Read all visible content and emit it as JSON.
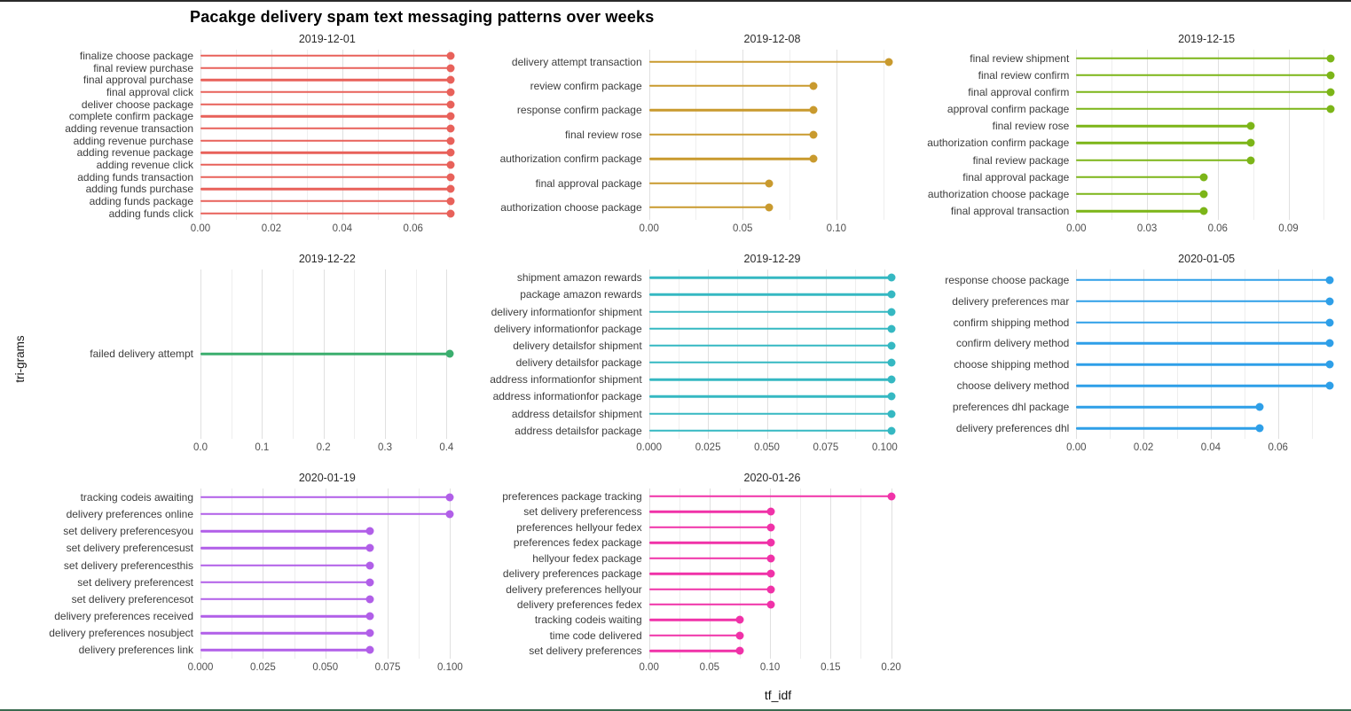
{
  "title": "Pacakge delivery spam text messaging patterns over weeks",
  "chart_data": {
    "type": "bar",
    "variant": "lollipop",
    "title": "Pacakge delivery spam text messaging patterns over weeks",
    "xlabel": "tf_idf",
    "ylabel": "tri-grams",
    "grid": "vertical-only",
    "legend": "none",
    "facets": [
      {
        "date": "2019-12-01",
        "color": "#E8615A",
        "xmax": 0.0715,
        "ticks": [
          {
            "v": 0.0,
            "label": "0.00"
          },
          {
            "v": 0.02,
            "label": "0.02"
          },
          {
            "v": 0.04,
            "label": "0.04"
          },
          {
            "v": 0.06,
            "label": "0.06"
          }
        ],
        "items": [
          {
            "label": "finalize choose package",
            "value": 0.0705
          },
          {
            "label": "final review purchase",
            "value": 0.0705
          },
          {
            "label": "final approval purchase",
            "value": 0.0705
          },
          {
            "label": "final approval click",
            "value": 0.0705
          },
          {
            "label": "deliver choose package",
            "value": 0.0705
          },
          {
            "label": "complete confirm package",
            "value": 0.0705
          },
          {
            "label": "adding revenue transaction",
            "value": 0.0705
          },
          {
            "label": "adding revenue purchase",
            "value": 0.0705
          },
          {
            "label": "adding revenue package",
            "value": 0.0705
          },
          {
            "label": "adding revenue click",
            "value": 0.0705
          },
          {
            "label": "adding funds transaction",
            "value": 0.0705
          },
          {
            "label": "adding funds purchase",
            "value": 0.0705
          },
          {
            "label": "adding funds package",
            "value": 0.0705
          },
          {
            "label": "adding funds click",
            "value": 0.0705
          }
        ]
      },
      {
        "date": "2019-12-08",
        "color": "#C99A2E",
        "xmax": 0.1315,
        "ticks": [
          {
            "v": 0.0,
            "label": "0.00"
          },
          {
            "v": 0.05,
            "label": "0.05"
          },
          {
            "v": 0.1,
            "label": "0.10"
          }
        ],
        "items": [
          {
            "label": "delivery attempt transaction",
            "value": 0.128
          },
          {
            "label": "review confirm package",
            "value": 0.088
          },
          {
            "label": "response confirm package",
            "value": 0.088
          },
          {
            "label": "final review rose",
            "value": 0.088
          },
          {
            "label": "authorization confirm package",
            "value": 0.088
          },
          {
            "label": "final approval package",
            "value": 0.064
          },
          {
            "label": "authorization choose package",
            "value": 0.064
          }
        ]
      },
      {
        "date": "2019-12-15",
        "color": "#7CB518",
        "xmax": 0.1105,
        "ticks": [
          {
            "v": 0.0,
            "label": "0.00"
          },
          {
            "v": 0.03,
            "label": "0.03"
          },
          {
            "v": 0.06,
            "label": "0.06"
          },
          {
            "v": 0.09,
            "label": "0.09"
          }
        ],
        "items": [
          {
            "label": "final review shipment",
            "value": 0.108
          },
          {
            "label": "final review confirm",
            "value": 0.108
          },
          {
            "label": "final approval confirm",
            "value": 0.108
          },
          {
            "label": "approval confirm package",
            "value": 0.108
          },
          {
            "label": "final review rose",
            "value": 0.074
          },
          {
            "label": "authorization confirm package",
            "value": 0.074
          },
          {
            "label": "final review package",
            "value": 0.074
          },
          {
            "label": "final approval package",
            "value": 0.054
          },
          {
            "label": "authorization choose package",
            "value": 0.054
          },
          {
            "label": "final approval transaction",
            "value": 0.054
          }
        ]
      },
      {
        "date": "2019-12-22",
        "color": "#3BAE6E",
        "xmax": 0.412,
        "ticks": [
          {
            "v": 0.0,
            "label": "0.0"
          },
          {
            "v": 0.1,
            "label": "0.1"
          },
          {
            "v": 0.2,
            "label": "0.2"
          },
          {
            "v": 0.3,
            "label": "0.3"
          },
          {
            "v": 0.4,
            "label": "0.4"
          }
        ],
        "items": [
          {
            "label": "failed delivery attempt",
            "value": 0.405
          }
        ]
      },
      {
        "date": "2019-12-29",
        "color": "#35B8C2",
        "xmax": 0.1045,
        "ticks": [
          {
            "v": 0.0,
            "label": "0.000"
          },
          {
            "v": 0.025,
            "label": "0.025"
          },
          {
            "v": 0.05,
            "label": "0.050"
          },
          {
            "v": 0.075,
            "label": "0.075"
          },
          {
            "v": 0.1,
            "label": "0.100"
          }
        ],
        "items": [
          {
            "label": "shipment amazon rewards",
            "value": 0.103
          },
          {
            "label": "package amazon rewards",
            "value": 0.103
          },
          {
            "label": "delivery informationfor shipment",
            "value": 0.103
          },
          {
            "label": "delivery informationfor package",
            "value": 0.103
          },
          {
            "label": "delivery detailsfor shipment",
            "value": 0.103
          },
          {
            "label": "delivery detailsfor package",
            "value": 0.103
          },
          {
            "label": "address informationfor shipment",
            "value": 0.103
          },
          {
            "label": "address informationfor package",
            "value": 0.103
          },
          {
            "label": "address detailsfor shipment",
            "value": 0.103
          },
          {
            "label": "address detailsfor package",
            "value": 0.103
          }
        ]
      },
      {
        "date": "2020-01-05",
        "color": "#2E9FE8",
        "xmax": 0.0775,
        "ticks": [
          {
            "v": 0.0,
            "label": "0.00"
          },
          {
            "v": 0.02,
            "label": "0.02"
          },
          {
            "v": 0.04,
            "label": "0.04"
          },
          {
            "v": 0.06,
            "label": "0.06"
          }
        ],
        "items": [
          {
            "label": "response choose package",
            "value": 0.0755
          },
          {
            "label": "delivery preferences mar",
            "value": 0.0755
          },
          {
            "label": "confirm shipping method",
            "value": 0.0755
          },
          {
            "label": "confirm delivery method",
            "value": 0.0755
          },
          {
            "label": "choose shipping method",
            "value": 0.0755
          },
          {
            "label": "choose delivery method",
            "value": 0.0755
          },
          {
            "label": "preferences dhl package",
            "value": 0.0545
          },
          {
            "label": "delivery preferences dhl",
            "value": 0.0545
          }
        ]
      },
      {
        "date": "2020-01-19",
        "color": "#B15FE8",
        "xmax": 0.1015,
        "ticks": [
          {
            "v": 0.0,
            "label": "0.000"
          },
          {
            "v": 0.025,
            "label": "0.025"
          },
          {
            "v": 0.05,
            "label": "0.050"
          },
          {
            "v": 0.075,
            "label": "0.075"
          },
          {
            "v": 0.1,
            "label": "0.100"
          }
        ],
        "items": [
          {
            "label": "tracking codeis awaiting",
            "value": 0.1
          },
          {
            "label": "delivery preferences online",
            "value": 0.1
          },
          {
            "label": "set delivery preferencesyou",
            "value": 0.068
          },
          {
            "label": "set delivery preferencesust",
            "value": 0.068
          },
          {
            "label": "set delivery preferencesthis",
            "value": 0.068
          },
          {
            "label": "set delivery preferencest",
            "value": 0.068
          },
          {
            "label": "set delivery preferencesot",
            "value": 0.068
          },
          {
            "label": "delivery preferences received",
            "value": 0.068
          },
          {
            "label": "delivery preferences nosubject",
            "value": 0.068
          },
          {
            "label": "delivery preferences link",
            "value": 0.068
          }
        ]
      },
      {
        "date": "2020-01-26",
        "color": "#F032A8",
        "xmax": 0.2035,
        "ticks": [
          {
            "v": 0.0,
            "label": "0.00"
          },
          {
            "v": 0.05,
            "label": "0.05"
          },
          {
            "v": 0.1,
            "label": "0.10"
          },
          {
            "v": 0.15,
            "label": "0.15"
          },
          {
            "v": 0.2,
            "label": "0.20"
          }
        ],
        "items": [
          {
            "label": "preferences package tracking",
            "value": 0.2
          },
          {
            "label": "set delivery preferencess",
            "value": 0.101
          },
          {
            "label": "preferences hellyour fedex",
            "value": 0.101
          },
          {
            "label": "preferences fedex package",
            "value": 0.101
          },
          {
            "label": "hellyour fedex package",
            "value": 0.101
          },
          {
            "label": "delivery preferences package",
            "value": 0.101
          },
          {
            "label": "delivery preferences hellyour",
            "value": 0.101
          },
          {
            "label": "delivery preferences fedex",
            "value": 0.101
          },
          {
            "label": "tracking codeis waiting",
            "value": 0.075
          },
          {
            "label": "time code delivered",
            "value": 0.075
          },
          {
            "label": "set delivery preferences",
            "value": 0.075
          }
        ]
      }
    ]
  }
}
